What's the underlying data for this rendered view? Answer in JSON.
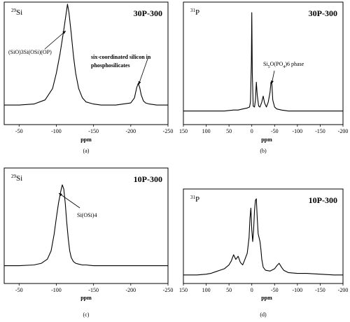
{
  "chart_data": [
    {
      "type": "line",
      "panel": "(a)",
      "nucleus": {
        "mass": "29",
        "symbol": "Si"
      },
      "sample": "30P-300",
      "xlabel": "ppm",
      "xlim": [
        -30,
        -250
      ],
      "x_reversed": true,
      "xticks": [
        -50,
        -100,
        -150,
        -200,
        -250
      ],
      "xtick_labels": [
        "-50",
        "-100",
        "-150",
        "-200",
        "-250"
      ],
      "annotations": [
        {
          "text": "(SiO)3Si(OSi)(OP)",
          "x": -120
        },
        {
          "text": "six-coordinated silicon in",
          "line2": "phosphosilicates",
          "x": -212
        }
      ],
      "series": [
        {
          "x": [
            -30,
            -50,
            -70,
            -85,
            -95,
            -100,
            -105,
            -110,
            -113,
            -115,
            -117,
            -120,
            -123,
            -126,
            -130,
            -135,
            -140,
            -150,
            -160,
            -170,
            -180,
            -190,
            -200,
            -205,
            -208,
            -210,
            -212,
            -214,
            -217,
            -220,
            -225,
            -235,
            -250
          ],
          "y": [
            0.02,
            0.02,
            0.03,
            0.07,
            0.18,
            0.33,
            0.52,
            0.75,
            0.9,
            1.0,
            0.92,
            0.72,
            0.5,
            0.33,
            0.18,
            0.09,
            0.05,
            0.03,
            0.02,
            0.02,
            0.02,
            0.03,
            0.04,
            0.09,
            0.19,
            0.23,
            0.19,
            0.12,
            0.06,
            0.04,
            0.03,
            0.02,
            0.02
          ]
        }
      ]
    },
    {
      "type": "line",
      "panel": "(b)",
      "nucleus": {
        "mass": "31",
        "symbol": "P"
      },
      "sample": "30P-300",
      "xlabel": "ppm",
      "xlim": [
        150,
        -200
      ],
      "x_reversed": true,
      "xticks": [
        150,
        100,
        50,
        0,
        -50,
        -100,
        -150,
        -200
      ],
      "xtick_labels": [
        "150",
        "100",
        "50",
        "0",
        "-50",
        "-100",
        "-150",
        "-200"
      ],
      "annotations": [
        {
          "text": "Si",
          "sub": "5",
          "mid": "O(PO",
          "sub2": "4",
          "end": ")6 phase",
          "x": -45
        }
      ],
      "series": [
        {
          "x": [
            150,
            100,
            60,
            40,
            30,
            20,
            10,
            5,
            3,
            1,
            0,
            -1,
            -3,
            -6,
            -8,
            -10,
            -12,
            -15,
            -18,
            -22,
            -25,
            -28,
            -32,
            -36,
            -40,
            -42,
            -44,
            -46,
            -50,
            -55,
            -65,
            -80,
            -100,
            -150,
            -200
          ],
          "y": [
            0.01,
            0.01,
            0.01,
            0.02,
            0.02,
            0.03,
            0.04,
            0.05,
            0.1,
            0.5,
            1.0,
            0.4,
            0.06,
            0.05,
            0.12,
            0.3,
            0.17,
            0.06,
            0.05,
            0.1,
            0.16,
            0.09,
            0.05,
            0.1,
            0.2,
            0.3,
            0.28,
            0.12,
            0.05,
            0.03,
            0.02,
            0.01,
            0.01,
            0.01,
            0.01
          ]
        }
      ]
    },
    {
      "type": "line",
      "panel": "(c)",
      "nucleus": {
        "mass": "29",
        "symbol": "Si"
      },
      "sample": "10P-300",
      "xlabel": "ppm",
      "xlim": [
        -30,
        -250
      ],
      "x_reversed": true,
      "xticks": [
        -50,
        -100,
        -150,
        -200,
        -250
      ],
      "xtick_labels": [
        "-50",
        "-100",
        "-150",
        "-200",
        "-250"
      ],
      "annotations": [
        {
          "text": "Si(OSi)4",
          "x": -110
        }
      ],
      "series": [
        {
          "x": [
            -30,
            -50,
            -70,
            -80,
            -88,
            -93,
            -97,
            -100,
            -103,
            -106,
            -108,
            -110,
            -112,
            -114,
            -116,
            -118,
            -120,
            -123,
            -126,
            -130,
            -135,
            -140,
            -150,
            -170,
            -200,
            -230,
            -250
          ],
          "y": [
            0.02,
            0.02,
            0.03,
            0.05,
            0.1,
            0.2,
            0.4,
            0.6,
            0.78,
            0.92,
            1.0,
            0.95,
            0.78,
            0.55,
            0.35,
            0.2,
            0.12,
            0.07,
            0.05,
            0.04,
            0.03,
            0.03,
            0.02,
            0.02,
            0.02,
            0.02,
            0.02
          ]
        }
      ]
    },
    {
      "type": "line",
      "panel": "(d)",
      "nucleus": {
        "mass": "31",
        "symbol": "P"
      },
      "sample": "10P-300",
      "xlabel": "ppm",
      "xlim": [
        150,
        -200
      ],
      "x_reversed": true,
      "xticks": [
        150,
        100,
        50,
        0,
        -50,
        -100,
        -150,
        -200
      ],
      "xtick_labels": [
        "150",
        "100",
        "50",
        "0",
        "-50",
        "-100",
        "-150",
        "-200"
      ],
      "annotations": [],
      "series": [
        {
          "x": [
            150,
            120,
            100,
            90,
            80,
            70,
            60,
            50,
            45,
            40,
            35,
            30,
            25,
            20,
            15,
            10,
            6,
            4,
            2,
            0,
            -2,
            -4,
            -6,
            -8,
            -10,
            -12,
            -14,
            -16,
            -18,
            -20,
            -22,
            -25,
            -30,
            -40,
            -50,
            -55,
            -60,
            -65,
            -70,
            -80,
            -100,
            -120,
            -150,
            -180,
            -200
          ],
          "y": [
            0.02,
            0.02,
            0.03,
            0.04,
            0.06,
            0.08,
            0.1,
            0.15,
            0.2,
            0.28,
            0.22,
            0.26,
            0.18,
            0.15,
            0.22,
            0.3,
            0.5,
            0.75,
            0.88,
            0.6,
            0.45,
            0.6,
            0.85,
            0.98,
            1.0,
            0.75,
            0.55,
            0.5,
            0.45,
            0.35,
            0.22,
            0.12,
            0.08,
            0.07,
            0.1,
            0.14,
            0.17,
            0.12,
            0.08,
            0.05,
            0.04,
            0.04,
            0.03,
            0.02,
            0.02
          ]
        }
      ]
    }
  ]
}
